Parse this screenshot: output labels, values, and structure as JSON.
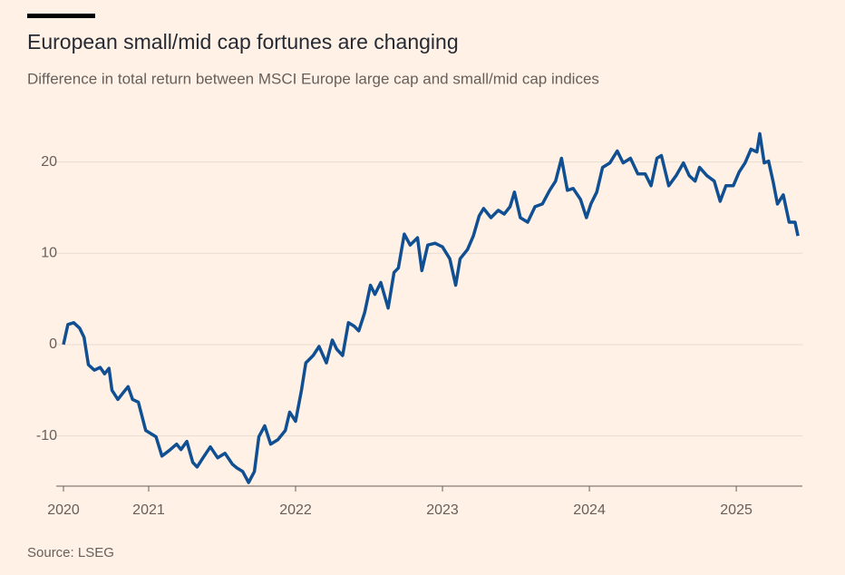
{
  "chart_data": {
    "type": "line",
    "title": "European small/mid cap fortunes are changing",
    "subtitle": "Difference in total return between MSCI Europe large cap and small/mid cap indices",
    "source": "Source: LSEG",
    "color": "#0f4f92",
    "grid": true,
    "xlim": [
      2020.42,
      2025.45
    ],
    "xticks": [
      {
        "value": 2020.42,
        "label": "2020"
      },
      2021,
      2022,
      2023,
      2024,
      2025
    ],
    "ylim": [
      -15.5,
      24
    ],
    "yticks": [
      -10,
      0,
      10,
      20
    ],
    "x": [
      2020.42,
      2020.45,
      2020.49,
      2020.53,
      2020.56,
      2020.59,
      2020.63,
      2020.67,
      2020.7,
      2020.73,
      2020.75,
      2020.79,
      2020.83,
      2020.86,
      2020.89,
      2020.93,
      2020.98,
      2021.01,
      2021.05,
      2021.09,
      2021.14,
      2021.19,
      2021.22,
      2021.26,
      2021.3,
      2021.33,
      2021.37,
      2021.42,
      2021.47,
      2021.52,
      2021.57,
      2021.6,
      2021.64,
      2021.68,
      2021.72,
      2021.75,
      2021.79,
      2021.83,
      2021.88,
      2021.93,
      2021.96,
      2022.0,
      2022.04,
      2022.07,
      2022.12,
      2022.16,
      2022.21,
      2022.25,
      2022.28,
      2022.32,
      2022.36,
      2022.4,
      2022.43,
      2022.47,
      2022.51,
      2022.54,
      2022.58,
      2022.63,
      2022.67,
      2022.7,
      2022.74,
      2022.78,
      2022.83,
      2022.86,
      2022.9,
      2022.95,
      2023.0,
      2023.05,
      2023.09,
      2023.12,
      2023.17,
      2023.21,
      2023.25,
      2023.28,
      2023.33,
      2023.38,
      2023.42,
      2023.46,
      2023.49,
      2023.53,
      2023.58,
      2023.63,
      2023.68,
      2023.73,
      2023.77,
      2023.81,
      2023.85,
      2023.89,
      2023.94,
      2023.98,
      2024.01,
      2024.05,
      2024.09,
      2024.14,
      2024.19,
      2024.23,
      2024.28,
      2024.33,
      2024.38,
      2024.42,
      2024.46,
      2024.49,
      2024.54,
      2024.59,
      2024.64,
      2024.68,
      2024.72,
      2024.75,
      2024.8,
      2024.85,
      2024.89,
      2024.93,
      2024.98,
      2025.02,
      2025.06,
      2025.1,
      2025.14,
      2025.16,
      2025.19,
      2025.22,
      2025.25,
      2025.28,
      2025.32,
      2025.36,
      2025.4,
      2025.42
    ],
    "values": [
      0,
      2.2,
      2.4,
      1.8,
      0.8,
      -2.2,
      -2.8,
      -2.5,
      -3.2,
      -2.6,
      -5,
      -6,
      -5.2,
      -4.6,
      -6,
      -6.3,
      -9.4,
      -9.7,
      -10.1,
      -12.2,
      -11.6,
      -10.9,
      -11.5,
      -10.6,
      -12.9,
      -13.4,
      -12.4,
      -11.2,
      -12.4,
      -11.9,
      -13.1,
      -13.5,
      -13.9,
      -15.1,
      -13.9,
      -10.1,
      -8.9,
      -10.9,
      -10.4,
      -9.4,
      -7.4,
      -8.4,
      -5,
      -2,
      -1.2,
      -0.2,
      -2,
      0.5,
      -0.5,
      -1.2,
      2.4,
      2,
      1.5,
      3.5,
      6.5,
      5.5,
      6.8,
      4,
      7.9,
      8.4,
      12.1,
      10.9,
      11.7,
      8.1,
      10.9,
      11.1,
      10.7,
      9.4,
      6.5,
      9.4,
      10.4,
      11.9,
      14.1,
      14.9,
      13.9,
      14.7,
      14.3,
      15.1,
      16.7,
      13.9,
      13.4,
      15.1,
      15.4,
      16.9,
      17.9,
      20.4,
      16.9,
      17.1,
      15.9,
      13.9,
      15.4,
      16.7,
      19.4,
      19.9,
      21.2,
      19.9,
      20.4,
      18.7,
      18.7,
      17.4,
      20.4,
      20.7,
      17.4,
      18.5,
      19.9,
      18.5,
      17.9,
      19.4,
      18.5,
      17.9,
      15.7,
      17.4,
      17.4,
      18.9,
      19.9,
      21.4,
      21.1,
      23.1,
      19.9,
      20.1,
      17.9,
      15.4,
      16.4,
      13.4,
      13.4,
      11.9
    ]
  }
}
